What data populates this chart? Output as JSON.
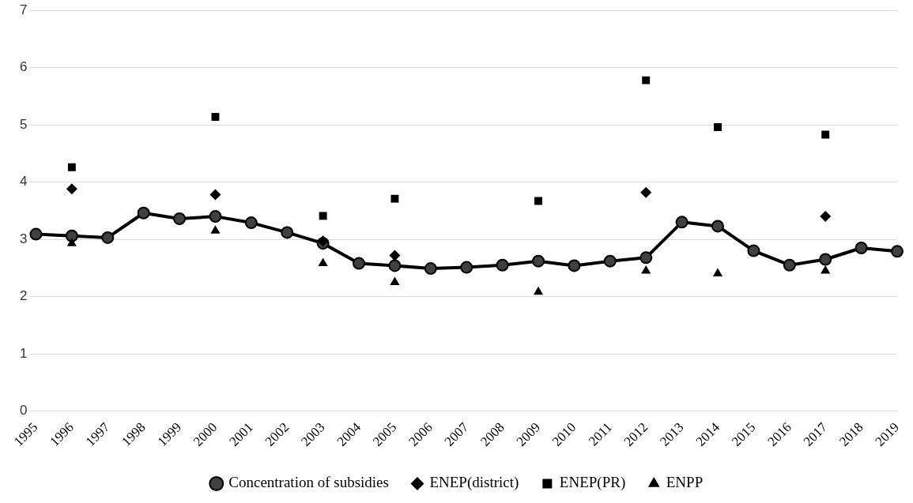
{
  "chart_data": {
    "type": "line",
    "categories": [
      "1995",
      "1996",
      "1997",
      "1998",
      "1999",
      "2000",
      "2001",
      "2002",
      "2003",
      "2004",
      "2005",
      "2006",
      "2007",
      "2008",
      "2009",
      "2010",
      "2011",
      "2012",
      "2013",
      "2014",
      "2015",
      "2016",
      "2017",
      "2018",
      "2019"
    ],
    "series": [
      {
        "name": "Concentration of subsidies",
        "type": "line",
        "marker": "circle",
        "color": "#000000",
        "values": [
          3.09,
          3.06,
          3.03,
          3.46,
          3.36,
          3.4,
          3.29,
          3.12,
          2.93,
          2.58,
          2.54,
          2.49,
          2.51,
          2.55,
          2.62,
          2.54,
          2.62,
          2.68,
          3.3,
          3.23,
          2.8,
          2.55,
          2.65,
          2.85,
          2.79
        ]
      },
      {
        "name": "ENEP(district)",
        "type": "scatter",
        "marker": "diamond",
        "color": "#000000",
        "values": [
          null,
          3.88,
          null,
          null,
          null,
          3.78,
          null,
          null,
          2.97,
          null,
          2.72,
          null,
          null,
          null,
          null,
          null,
          null,
          3.82,
          null,
          null,
          null,
          null,
          3.4,
          null,
          null
        ]
      },
      {
        "name": "ENEP(PR)",
        "type": "scatter",
        "marker": "square",
        "color": "#000000",
        "values": [
          null,
          4.26,
          null,
          null,
          null,
          5.14,
          null,
          null,
          3.41,
          null,
          3.71,
          null,
          null,
          null,
          3.67,
          null,
          null,
          5.78,
          null,
          4.96,
          null,
          null,
          4.83,
          null,
          null
        ]
      },
      {
        "name": "ENPP",
        "type": "scatter",
        "marker": "triangle",
        "color": "#000000",
        "values": [
          null,
          2.93,
          null,
          null,
          null,
          3.15,
          null,
          null,
          2.58,
          null,
          2.25,
          null,
          null,
          null,
          2.08,
          null,
          null,
          2.45,
          null,
          2.4,
          null,
          null,
          2.45,
          null,
          null
        ]
      }
    ],
    "ylim": [
      0,
      7
    ],
    "yticks": [
      0,
      1,
      2,
      3,
      4,
      5,
      6,
      7
    ],
    "grid": "y",
    "legend": "bottom"
  }
}
